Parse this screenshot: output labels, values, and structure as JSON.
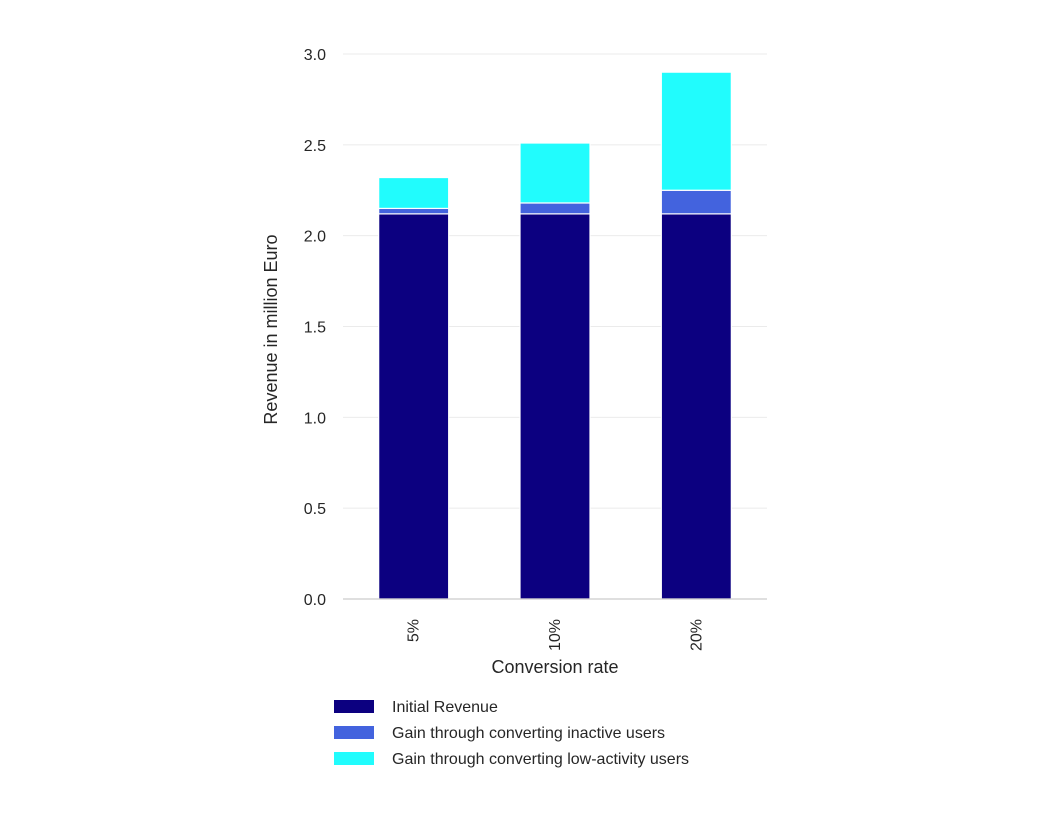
{
  "chart_data": {
    "type": "bar",
    "stacked": true,
    "categories": [
      "5%",
      "10%",
      "20%"
    ],
    "series": [
      {
        "name": "Initial Revenue",
        "color": "#0c0080",
        "values": [
          2.12,
          2.12,
          2.12
        ]
      },
      {
        "name": "Gain through converting inactive users",
        "color": "#4363de",
        "values": [
          0.03,
          0.06,
          0.13
        ]
      },
      {
        "name": "Gain through converting low-activity users",
        "color": "#21fcfd",
        "values": [
          0.17,
          0.33,
          0.65
        ]
      }
    ],
    "title": "",
    "xlabel": "Conversion rate",
    "ylabel": "Revenue in million Euro",
    "ylim": [
      0,
      3.0
    ],
    "yticks": [
      "0.0",
      "0.5",
      "1.0",
      "1.5",
      "2.0",
      "2.5",
      "3.0"
    ],
    "grid": true,
    "legend_position": "bottom"
  }
}
